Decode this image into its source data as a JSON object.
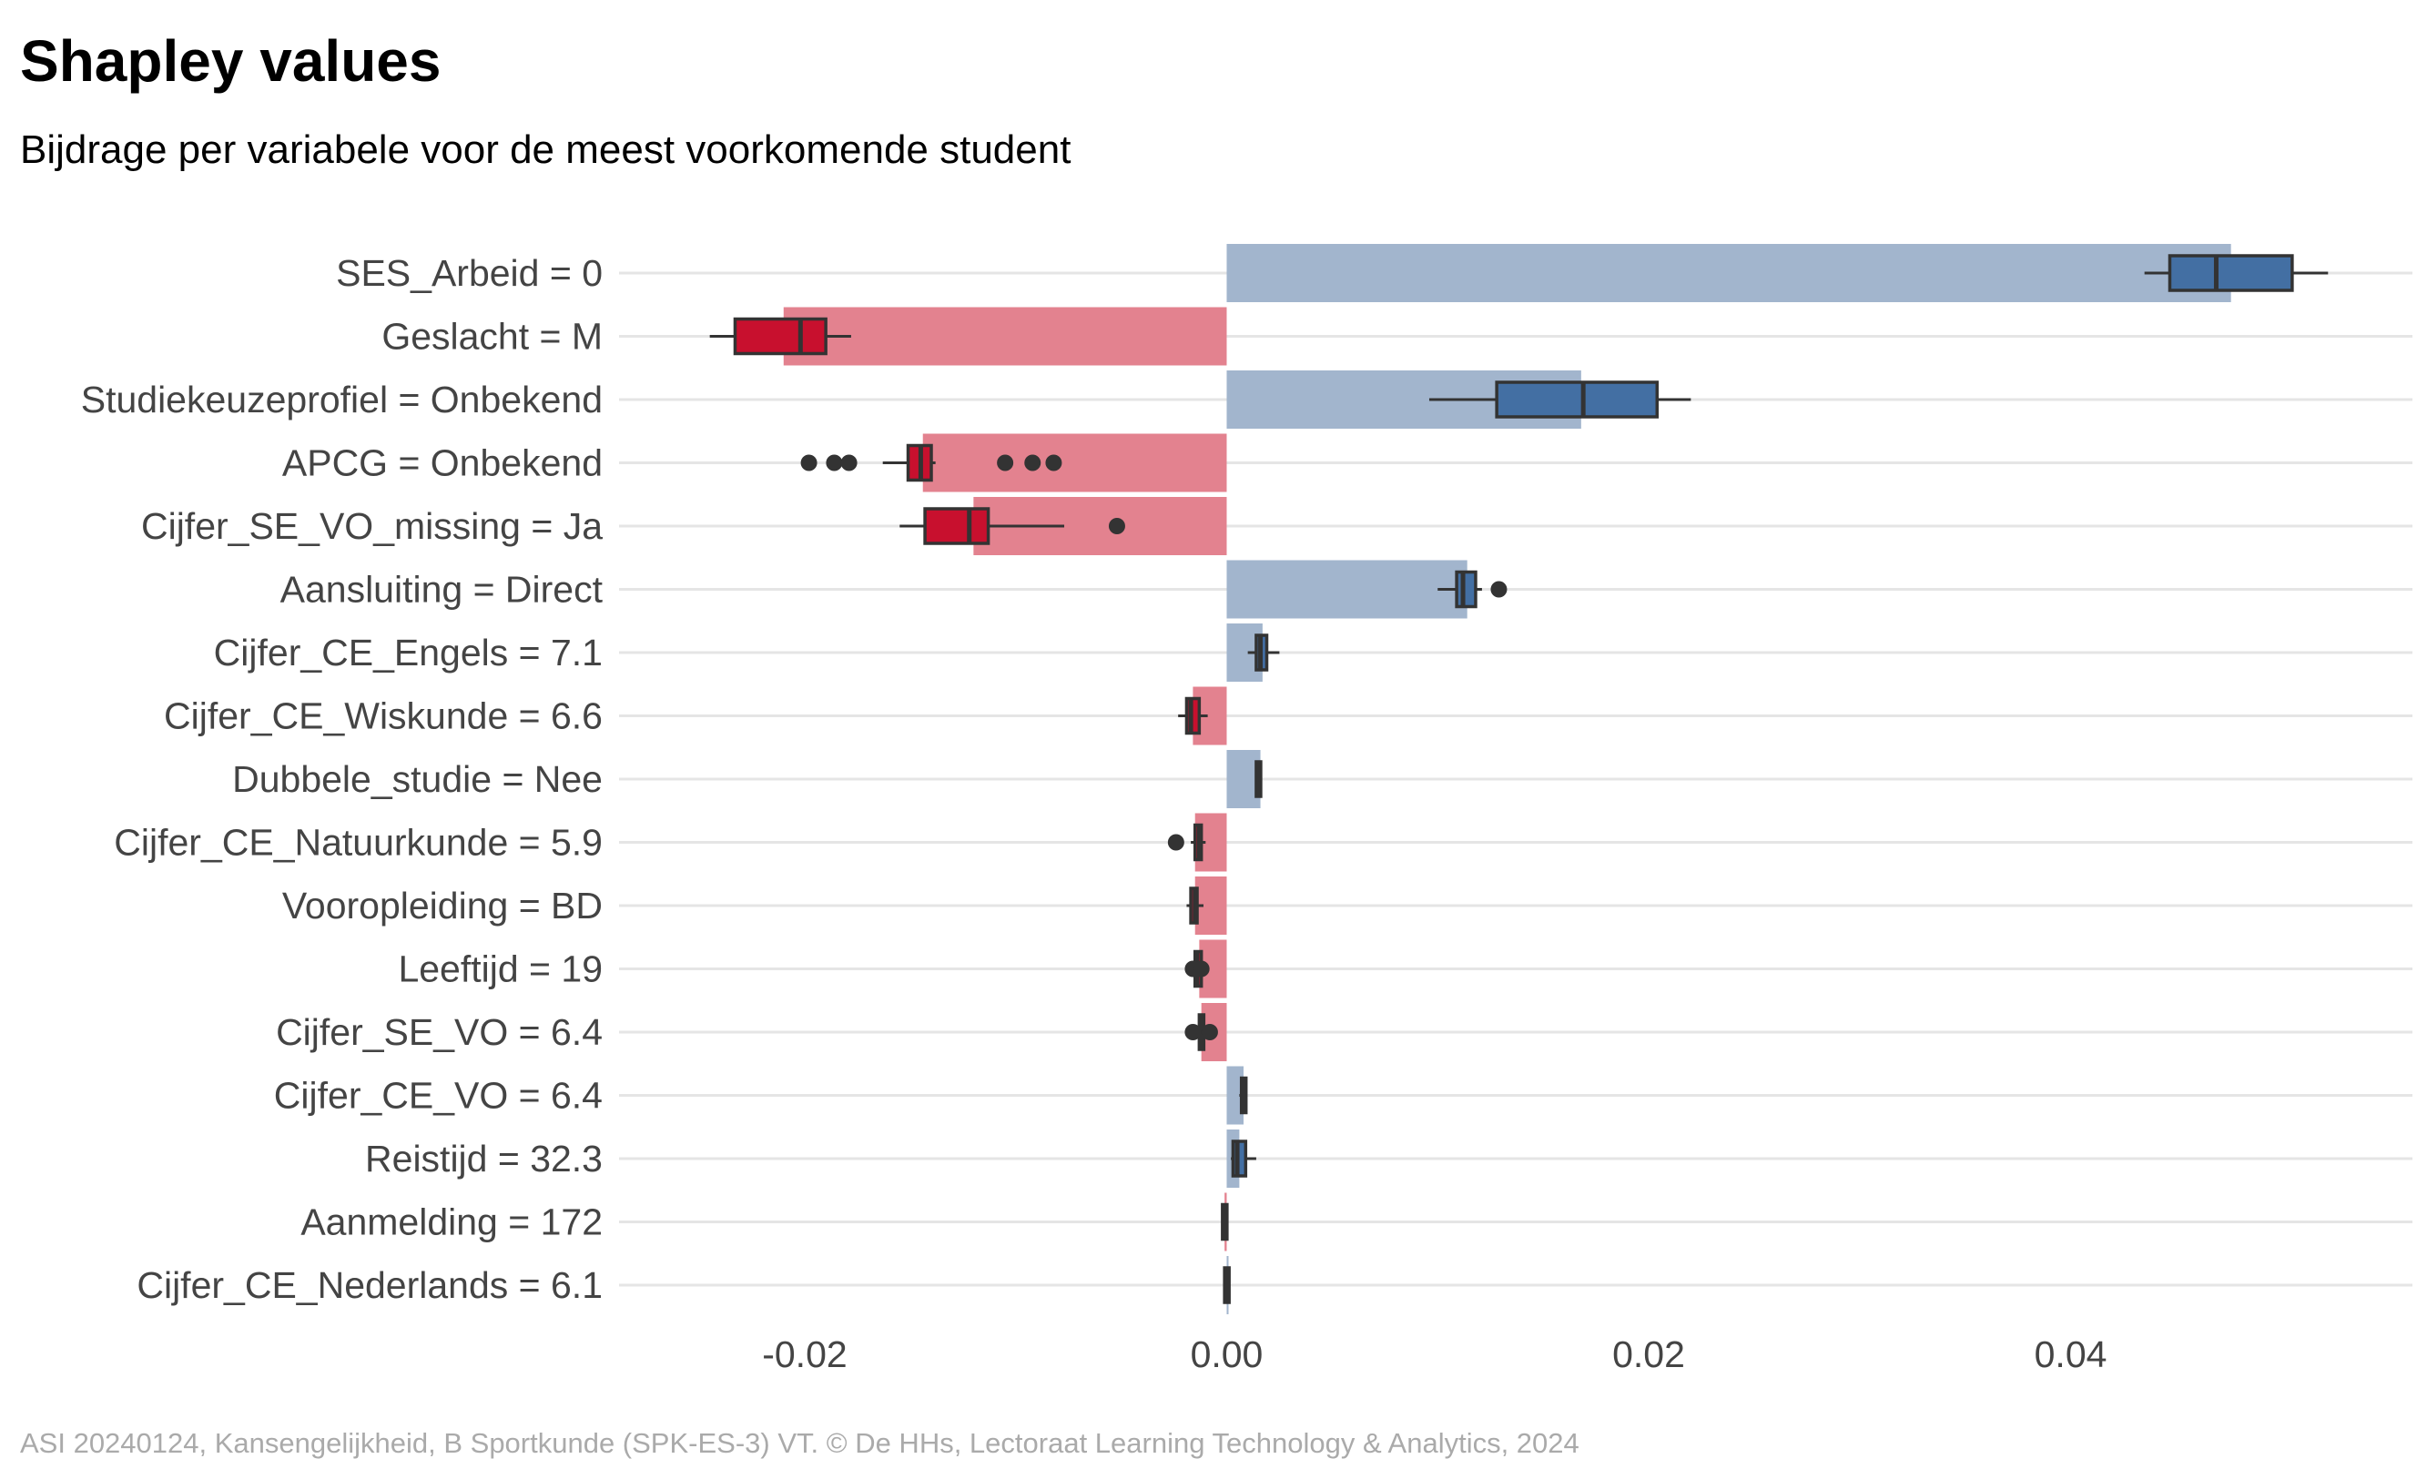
{
  "chart_data": {
    "type": "bar",
    "title": "Shapley values",
    "subtitle": "Bijdrage per variabele voor de meest voorkomende student",
    "caption": "ASI 20240124, Kansengelijkheid, B Sportkunde (SPK-ES-3) VT. © De HHs, Lectoraat Learning Technology & Analytics, 2024",
    "xlabel": "",
    "ylabel": "",
    "xlim": [
      -0.0288,
      0.0562
    ],
    "xticks": [
      {
        "value": -0.02,
        "label": "-0.02"
      },
      {
        "value": 0.0,
        "label": "0.00"
      },
      {
        "value": 0.02,
        "label": "0.02"
      },
      {
        "value": 0.04,
        "label": "0.04"
      }
    ],
    "grid": "horizontal",
    "colors": {
      "positive_bar": "#a2b5cd",
      "negative_bar": "#e3828f",
      "positive_box": "#436fa3",
      "negative_box": "#c8102e",
      "outline": "#333333",
      "grid": "#e5e5e5"
    },
    "categories": [
      {
        "label": "SES_Arbeid = 0",
        "value": 0.0476,
        "box": {
          "whisker_low": 0.0435,
          "q1": 0.0447,
          "median": 0.0469,
          "q3": 0.0505,
          "whisker_high": 0.0522
        },
        "outliers": []
      },
      {
        "label": "Geslacht = M",
        "value": -0.021,
        "box": {
          "whisker_low": -0.0245,
          "q1": -0.0233,
          "median": -0.0202,
          "q3": -0.019,
          "whisker_high": -0.0178
        },
        "outliers": []
      },
      {
        "label": "Studiekeuzeprofiel = Onbekend",
        "value": 0.0168,
        "box": {
          "whisker_low": 0.0096,
          "q1": 0.0128,
          "median": 0.0169,
          "q3": 0.0204,
          "whisker_high": 0.022
        },
        "outliers": []
      },
      {
        "label": "APCG = Onbekend",
        "value": -0.0144,
        "box": {
          "whisker_low": -0.0163,
          "q1": -0.0151,
          "median": -0.0145,
          "q3": -0.014,
          "whisker_high": -0.0138
        },
        "outliers": [
          -0.0198,
          -0.0186,
          -0.0179,
          -0.0105,
          -0.0092,
          -0.0082
        ]
      },
      {
        "label": "Cijfer_SE_VO_missing = Ja",
        "value": -0.012,
        "box": {
          "whisker_low": -0.0155,
          "q1": -0.0143,
          "median": -0.0122,
          "q3": -0.0113,
          "whisker_high": -0.0077
        },
        "outliers": [
          -0.0052
        ]
      },
      {
        "label": "Aansluiting = Direct",
        "value": 0.0114,
        "box": {
          "whisker_low": 0.01,
          "q1": 0.0109,
          "median": 0.0112,
          "q3": 0.0118,
          "whisker_high": 0.0121
        },
        "outliers": [
          0.0129
        ]
      },
      {
        "label": "Cijfer_CE_Engels = 7.1",
        "value": 0.0017,
        "box": {
          "whisker_low": 0.001,
          "q1": 0.0014,
          "median": 0.0016,
          "q3": 0.0019,
          "whisker_high": 0.0025
        },
        "outliers": []
      },
      {
        "label": "Cijfer_CE_Wiskunde = 6.6",
        "value": -0.0016,
        "box": {
          "whisker_low": -0.0023,
          "q1": -0.0019,
          "median": -0.0017,
          "q3": -0.0013,
          "whisker_high": -0.0009
        },
        "outliers": []
      },
      {
        "label": "Dubbele_studie = Nee",
        "value": 0.0016,
        "box": {
          "whisker_low": 0.0014,
          "q1": 0.0014,
          "median": 0.0015,
          "q3": 0.0016,
          "whisker_high": 0.0016
        },
        "outliers": []
      },
      {
        "label": "Cijfer_CE_Natuurkunde = 5.9",
        "value": -0.0015,
        "box": {
          "whisker_low": -0.0017,
          "q1": -0.0015,
          "median": -0.0013,
          "q3": -0.0012,
          "whisker_high": -0.001
        },
        "outliers": [
          -0.0024
        ]
      },
      {
        "label": "Vooropleiding = BD",
        "value": -0.0015,
        "box": {
          "whisker_low": -0.0019,
          "q1": -0.0017,
          "median": -0.0015,
          "q3": -0.0014,
          "whisker_high": -0.0011
        },
        "outliers": []
      },
      {
        "label": "Leeftijd = 19",
        "value": -0.0013,
        "box": {
          "whisker_low": -0.0017,
          "q1": -0.0015,
          "median": -0.0014,
          "q3": -0.0012,
          "whisker_high": -0.001
        },
        "outliers": [
          -0.0016,
          -0.0012
        ]
      },
      {
        "label": "Cijfer_SE_VO = 6.4",
        "value": -0.0012,
        "box": {
          "whisker_low": -0.0015,
          "q1": -0.0013,
          "median": -0.0012,
          "q3": -0.0011,
          "whisker_high": -0.001
        },
        "outliers": [
          -0.0016,
          -0.0008
        ]
      },
      {
        "label": "Cijfer_CE_VO = 6.4",
        "value": 0.0008,
        "box": {
          "whisker_low": 0.0006,
          "q1": 0.0007,
          "median": 0.0008,
          "q3": 0.0008,
          "whisker_high": 0.0009
        },
        "outliers": []
      },
      {
        "label": "Reistijd = 32.3",
        "value": 0.0006,
        "box": {
          "whisker_low": 0.0002,
          "q1": 0.0003,
          "median": 0.0005,
          "q3": 0.0009,
          "whisker_high": 0.0014
        },
        "outliers": []
      },
      {
        "label": "Aanmelding = 172",
        "value": -0.0001,
        "box": {
          "whisker_low": -0.0002,
          "q1": -0.0002,
          "median": -0.0001,
          "q3": 0.0,
          "whisker_high": 0.0
        },
        "outliers": []
      },
      {
        "label": "Cijfer_CE_Nederlands = 6.1",
        "value": 0.0,
        "box": {
          "whisker_low": -0.0001,
          "q1": -0.0001,
          "median": 0.0,
          "q3": 0.0001,
          "whisker_high": 0.0001
        },
        "outliers": []
      }
    ]
  }
}
